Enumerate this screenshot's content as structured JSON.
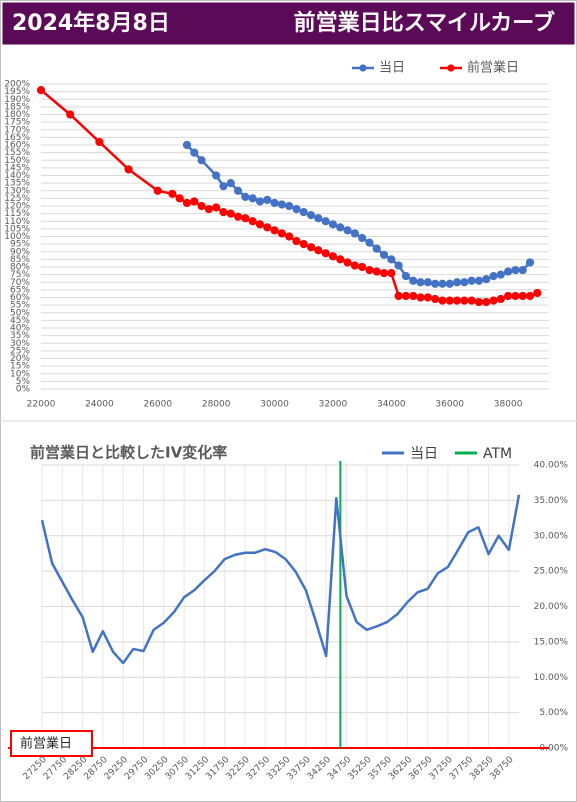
{
  "header": {
    "date": "2024年8月8日",
    "title": "前営業日比スマイルカーブ"
  },
  "chart_data": [
    {
      "type": "line",
      "markers": true,
      "grid": true,
      "xlim": [
        22000,
        39400
      ],
      "xticks": [
        22000,
        24000,
        26000,
        28000,
        30000,
        32000,
        34000,
        36000,
        38000
      ],
      "ylim": [
        0,
        200
      ],
      "yticks": [
        {
          "value": 0,
          "label": "0%"
        },
        {
          "value": 5,
          "label": "5%"
        },
        {
          "value": 10,
          "label": "10%"
        },
        {
          "value": 15,
          "label": "15%"
        },
        {
          "value": 20,
          "label": "20%"
        },
        {
          "value": 25,
          "label": "25%"
        },
        {
          "value": 30,
          "label": "30%"
        },
        {
          "value": 35,
          "label": "35%"
        },
        {
          "value": 40,
          "label": "40%"
        },
        {
          "value": 45,
          "label": "45%"
        },
        {
          "value": 50,
          "label": "50%"
        },
        {
          "value": 55,
          "label": "55%"
        },
        {
          "value": 60,
          "label": "60%"
        },
        {
          "value": 65,
          "label": "65%"
        },
        {
          "value": 70,
          "label": "70%"
        },
        {
          "value": 75,
          "label": "75%"
        },
        {
          "value": 80,
          "label": "80%"
        },
        {
          "value": 85,
          "label": "85%"
        },
        {
          "value": 90,
          "label": "90%"
        },
        {
          "value": 95,
          "label": "95%"
        },
        {
          "value": 100,
          "label": "100%"
        },
        {
          "value": 105,
          "label": "105%"
        },
        {
          "value": 110,
          "label": "110%"
        },
        {
          "value": 115,
          "label": "115%"
        },
        {
          "value": 120,
          "label": "120%"
        },
        {
          "value": 125,
          "label": "125%"
        },
        {
          "value": 130,
          "label": "130%"
        },
        {
          "value": 135,
          "label": "135%"
        },
        {
          "value": 140,
          "label": "140%"
        },
        {
          "value": 145,
          "label": "145%"
        },
        {
          "value": 150,
          "label": "150%"
        },
        {
          "value": 155,
          "label": "155%"
        },
        {
          "value": 160,
          "label": "160%"
        },
        {
          "value": 165,
          "label": "165%"
        },
        {
          "value": 170,
          "label": "170%"
        },
        {
          "value": 175,
          "label": "175%"
        },
        {
          "value": 180,
          "label": "180%"
        },
        {
          "value": 185,
          "label": "185%"
        },
        {
          "value": 190,
          "label": "190%"
        },
        {
          "value": 195,
          "label": "195%"
        },
        {
          "value": 200,
          "label": "200%"
        }
      ],
      "series": [
        {
          "name": "当日",
          "color": "#4472c4",
          "x": [
            27000,
            27250,
            27500,
            28000,
            28250,
            28500,
            28750,
            29000,
            29250,
            29500,
            29750,
            30000,
            30250,
            30500,
            30750,
            31000,
            31250,
            31500,
            31750,
            32000,
            32250,
            32500,
            32750,
            33000,
            33250,
            33500,
            33750,
            34000,
            34250,
            34500,
            34750,
            35000,
            35250,
            35500,
            35750,
            36000,
            36250,
            36500,
            36750,
            37000,
            37250,
            37500,
            37750,
            38000,
            38250,
            38500,
            38750
          ],
          "values": [
            160,
            155,
            150,
            140,
            133,
            135,
            130,
            126,
            125,
            123,
            124,
            122,
            121,
            120,
            118,
            116,
            114,
            112,
            110,
            108,
            106,
            104,
            102,
            99,
            96,
            92,
            88,
            85,
            81,
            74,
            71,
            70,
            70,
            69,
            69,
            69,
            70,
            70,
            71,
            71,
            72,
            74,
            75,
            77,
            78,
            78,
            83
          ]
        },
        {
          "name": "前営業日",
          "color": "#ff0000",
          "x": [
            22000,
            23000,
            24000,
            25000,
            26000,
            26500,
            26750,
            27000,
            27250,
            27500,
            27750,
            28000,
            28250,
            28500,
            28750,
            29000,
            29250,
            29500,
            29750,
            30000,
            30250,
            30500,
            30750,
            31000,
            31250,
            31500,
            31750,
            32000,
            32250,
            32500,
            32750,
            33000,
            33250,
            33500,
            33750,
            34000,
            34250,
            34500,
            34750,
            35000,
            35250,
            35500,
            35750,
            36000,
            36250,
            36500,
            36750,
            37000,
            37250,
            37500,
            37750,
            38000,
            38250,
            38500,
            38750,
            39000
          ],
          "values": [
            196,
            180,
            162,
            144,
            130,
            128,
            125,
            122,
            123,
            120,
            118,
            119,
            116,
            115,
            113,
            112,
            110,
            108,
            106,
            104,
            102,
            100,
            97,
            95,
            93,
            91,
            89,
            87,
            85,
            83,
            81,
            80,
            78,
            77,
            76,
            76,
            61,
            61,
            61,
            60,
            60,
            59,
            58,
            58,
            58,
            58,
            58,
            57,
            57,
            58,
            59,
            61,
            61,
            61,
            61,
            63
          ]
        }
      ]
    },
    {
      "type": "line",
      "markers": false,
      "grid": true,
      "title": "前営業日と比較したIV変化率",
      "x": [
        27250,
        27500,
        27750,
        28000,
        28250,
        28500,
        28750,
        29000,
        29250,
        29500,
        29750,
        30000,
        30250,
        30500,
        30750,
        31000,
        31250,
        31500,
        31750,
        32000,
        32250,
        32500,
        32750,
        33000,
        33250,
        33500,
        33750,
        34000,
        34250,
        34500,
        34750,
        35000,
        35250,
        35500,
        35750,
        36000,
        36250,
        36500,
        36750,
        37000,
        37250,
        37500,
        37750,
        38000,
        38250,
        38500,
        38750,
        39000
      ],
      "xlim": [
        27250,
        39000
      ],
      "xticks": [
        27250,
        27750,
        28250,
        28750,
        29250,
        29750,
        30250,
        30750,
        31250,
        31750,
        32250,
        32750,
        33250,
        33750,
        34250,
        34750,
        35250,
        35750,
        36250,
        36750,
        37250,
        37750,
        38250,
        38750
      ],
      "ylim": [
        0,
        40
      ],
      "yticks": [
        {
          "value": 0,
          "label": "0.00%"
        },
        {
          "value": 5,
          "label": "5.00%"
        },
        {
          "value": 10,
          "label": "10.00%"
        },
        {
          "value": 15,
          "label": "15.00%"
        },
        {
          "value": 20,
          "label": "20.00%"
        },
        {
          "value": 25,
          "label": "25.00%"
        },
        {
          "value": 30,
          "label": "30.00%"
        },
        {
          "value": 35,
          "label": "35.00%"
        },
        {
          "value": 40,
          "label": "40.00%"
        }
      ],
      "series": [
        {
          "name": "当日",
          "color": "#4472c4",
          "values": [
            32.2,
            26.1,
            23.5,
            20.9,
            18.5,
            13.6,
            16.5,
            13.6,
            12.0,
            14.0,
            13.7,
            16.7,
            17.7,
            19.2,
            21.3,
            22.3,
            23.7,
            25.0,
            26.7,
            27.3,
            27.6,
            27.6,
            28.1,
            27.7,
            26.7,
            24.9,
            22.3,
            17.8,
            13.0,
            35.3,
            21.5,
            17.8,
            16.7,
            17.2,
            17.8,
            18.9,
            20.6,
            22.0,
            22.5,
            24.7,
            25.6,
            28.0,
            30.5,
            31.2,
            27.4,
            30.0,
            28.0,
            35.8
          ]
        }
      ],
      "atm": {
        "name": "ATM",
        "color": "#00b050",
        "x": 34600
      },
      "baseline": {
        "name": "前営業日",
        "color": "#ff0000",
        "value": 0
      }
    }
  ]
}
